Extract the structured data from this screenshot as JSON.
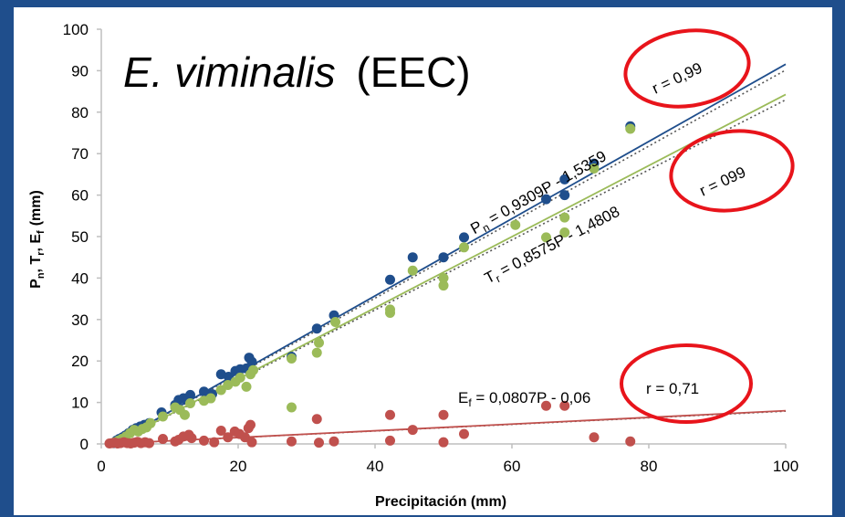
{
  "chart_data": {
    "type": "scatter",
    "title_species": "E. viminalis",
    "title_site": "(EEC)",
    "xlabel": "Precipitación (mm)",
    "ylabel_parts": {
      "p": "P",
      "p_sub": "n",
      "t": "T",
      "t_sub": "r",
      "e": "E",
      "e_sub": "f",
      "unit": "(mm)"
    },
    "xlim": [
      0,
      100
    ],
    "ylim": [
      0,
      100
    ],
    "x_ticks": [
      0,
      20,
      40,
      60,
      80,
      100
    ],
    "y_ticks": [
      0,
      10,
      20,
      30,
      40,
      50,
      60,
      70,
      80,
      90,
      100
    ],
    "grid": false,
    "series": [
      {
        "key": "pn",
        "color": "#1f4e8c",
        "slope": 0.9309,
        "intercept": -1.5359,
        "equation": {
          "pre": "P",
          "sub": "n",
          "post": " = 0,9309P - 1,5359"
        },
        "r_label": "r = 0,99",
        "points": [
          [
            1.8,
            0.2
          ],
          [
            2.2,
            0.8
          ],
          [
            2.6,
            1.2
          ],
          [
            3.1,
            1.6
          ],
          [
            3.5,
            2.0
          ],
          [
            4.0,
            2.6
          ],
          [
            4.6,
            3.4
          ],
          [
            5.1,
            3.8
          ],
          [
            5.7,
            4.2
          ],
          [
            6.3,
            4.6
          ],
          [
            7.0,
            5.0
          ],
          [
            8.8,
            7.6
          ],
          [
            10.8,
            9.4
          ],
          [
            11.3,
            10.6
          ],
          [
            12.0,
            11.0
          ],
          [
            13.0,
            11.8
          ],
          [
            15.0,
            12.6
          ],
          [
            16.2,
            12.0
          ],
          [
            17.5,
            16.8
          ],
          [
            18.6,
            16.2
          ],
          [
            19.6,
            17.6
          ],
          [
            20.3,
            18.0
          ],
          [
            21.2,
            18.2
          ],
          [
            21.6,
            20.8
          ],
          [
            22.0,
            19.8
          ],
          [
            27.8,
            21.0
          ],
          [
            31.5,
            27.8
          ],
          [
            34.0,
            31.0
          ],
          [
            42.2,
            39.6
          ],
          [
            45.5,
            45.0
          ],
          [
            50.0,
            45.0
          ],
          [
            53.0,
            49.8
          ],
          [
            65.0,
            59.0
          ],
          [
            67.7,
            63.8
          ],
          [
            67.7,
            60.0
          ],
          [
            72.0,
            67.6
          ],
          [
            77.3,
            76.6
          ]
        ]
      },
      {
        "key": "tr",
        "color": "#9bbb59",
        "slope": 0.8575,
        "intercept": -1.4808,
        "equation": {
          "pre": "T",
          "sub": "r",
          "post": " = 0,8575P - 1,4808"
        },
        "r_label": "r = 099",
        "points": [
          [
            2.0,
            0.4
          ],
          [
            2.5,
            0.8
          ],
          [
            3.0,
            1.2
          ],
          [
            3.6,
            1.8
          ],
          [
            4.2,
            2.6
          ],
          [
            4.8,
            3.4
          ],
          [
            5.4,
            3.0
          ],
          [
            6.0,
            3.6
          ],
          [
            6.6,
            4.0
          ],
          [
            7.2,
            5.0
          ],
          [
            9.0,
            6.6
          ],
          [
            10.8,
            8.8
          ],
          [
            11.5,
            8.2
          ],
          [
            12.2,
            7.0
          ],
          [
            13.0,
            9.8
          ],
          [
            15.0,
            10.4
          ],
          [
            16.0,
            11.0
          ],
          [
            17.5,
            13.0
          ],
          [
            18.5,
            14.2
          ],
          [
            19.6,
            15.0
          ],
          [
            20.3,
            16.0
          ],
          [
            21.2,
            13.8
          ],
          [
            21.8,
            16.8
          ],
          [
            22.2,
            17.8
          ],
          [
            27.8,
            8.8
          ],
          [
            27.8,
            20.6
          ],
          [
            31.5,
            22.0
          ],
          [
            31.8,
            24.4
          ],
          [
            34.2,
            29.4
          ],
          [
            42.2,
            31.6
          ],
          [
            42.2,
            32.4
          ],
          [
            45.5,
            41.8
          ],
          [
            50.0,
            38.2
          ],
          [
            50.0,
            40.0
          ],
          [
            53.0,
            47.4
          ],
          [
            60.5,
            52.8
          ],
          [
            65.0,
            49.8
          ],
          [
            67.7,
            51.0
          ],
          [
            67.7,
            54.6
          ],
          [
            72.0,
            66.4
          ],
          [
            77.3,
            76.0
          ]
        ]
      },
      {
        "key": "ef",
        "color": "#c0504d",
        "slope": 0.0807,
        "intercept": -0.06,
        "equation": {
          "pre": "E",
          "sub": "f",
          "post": " = 0,0807P - 0,06"
        },
        "r_label": "r = 0,71",
        "points": [
          [
            1.2,
            0.1
          ],
          [
            1.6,
            0.2
          ],
          [
            2.0,
            0.3
          ],
          [
            2.4,
            0.1
          ],
          [
            2.8,
            0.2
          ],
          [
            3.3,
            0.4
          ],
          [
            3.8,
            0.2
          ],
          [
            4.3,
            0.1
          ],
          [
            4.8,
            0.3
          ],
          [
            5.3,
            0.5
          ],
          [
            5.8,
            0.2
          ],
          [
            6.4,
            0.4
          ],
          [
            7.0,
            0.2
          ],
          [
            9.0,
            1.2
          ],
          [
            10.8,
            0.6
          ],
          [
            11.3,
            1.0
          ],
          [
            12.0,
            1.8
          ],
          [
            12.8,
            2.2
          ],
          [
            13.2,
            1.4
          ],
          [
            15.0,
            0.8
          ],
          [
            16.5,
            0.4
          ],
          [
            17.5,
            3.2
          ],
          [
            18.5,
            1.6
          ],
          [
            19.5,
            3.0
          ],
          [
            20.2,
            2.4
          ],
          [
            21.0,
            1.6
          ],
          [
            21.5,
            3.8
          ],
          [
            21.8,
            4.6
          ],
          [
            22.0,
            0.4
          ],
          [
            27.8,
            0.6
          ],
          [
            31.5,
            6.0
          ],
          [
            31.8,
            0.3
          ],
          [
            34.0,
            0.6
          ],
          [
            42.2,
            7.0
          ],
          [
            42.2,
            0.8
          ],
          [
            45.5,
            3.4
          ],
          [
            50.0,
            7.0
          ],
          [
            50.0,
            0.4
          ],
          [
            53.0,
            2.4
          ],
          [
            65.0,
            9.2
          ],
          [
            67.7,
            9.2
          ],
          [
            72.0,
            1.6
          ],
          [
            77.3,
            0.6
          ]
        ]
      }
    ]
  }
}
